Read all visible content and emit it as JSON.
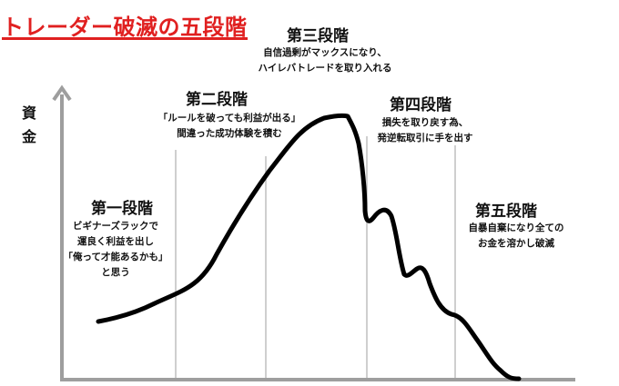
{
  "title": "トレーダー破滅の五段階",
  "y_axis_label": "資金",
  "colors": {
    "title": "#e02020",
    "axis": "#9e9e9e",
    "divider": "#b5b5b5",
    "curve": "#000000"
  },
  "stages": [
    {
      "title": "第一段階",
      "description": "ビギナーズラックで\n運良く利益を出し\n「俺って才能あるかも」\nと思う"
    },
    {
      "title": "第二段階",
      "description": "「ルールを破っても利益が出る」\n間違った成功体験を積む"
    },
    {
      "title": "第三段階",
      "description": "自信過剰がマックスになり、\nハイレバトレードを取り入れる"
    },
    {
      "title": "第四段階",
      "description": "損失を取り戻す為、\n発逆転取引に手を出す"
    },
    {
      "title": "第五段階",
      "description": "自暴自棄になり全ての\nお金を溶かし破滅"
    }
  ]
}
